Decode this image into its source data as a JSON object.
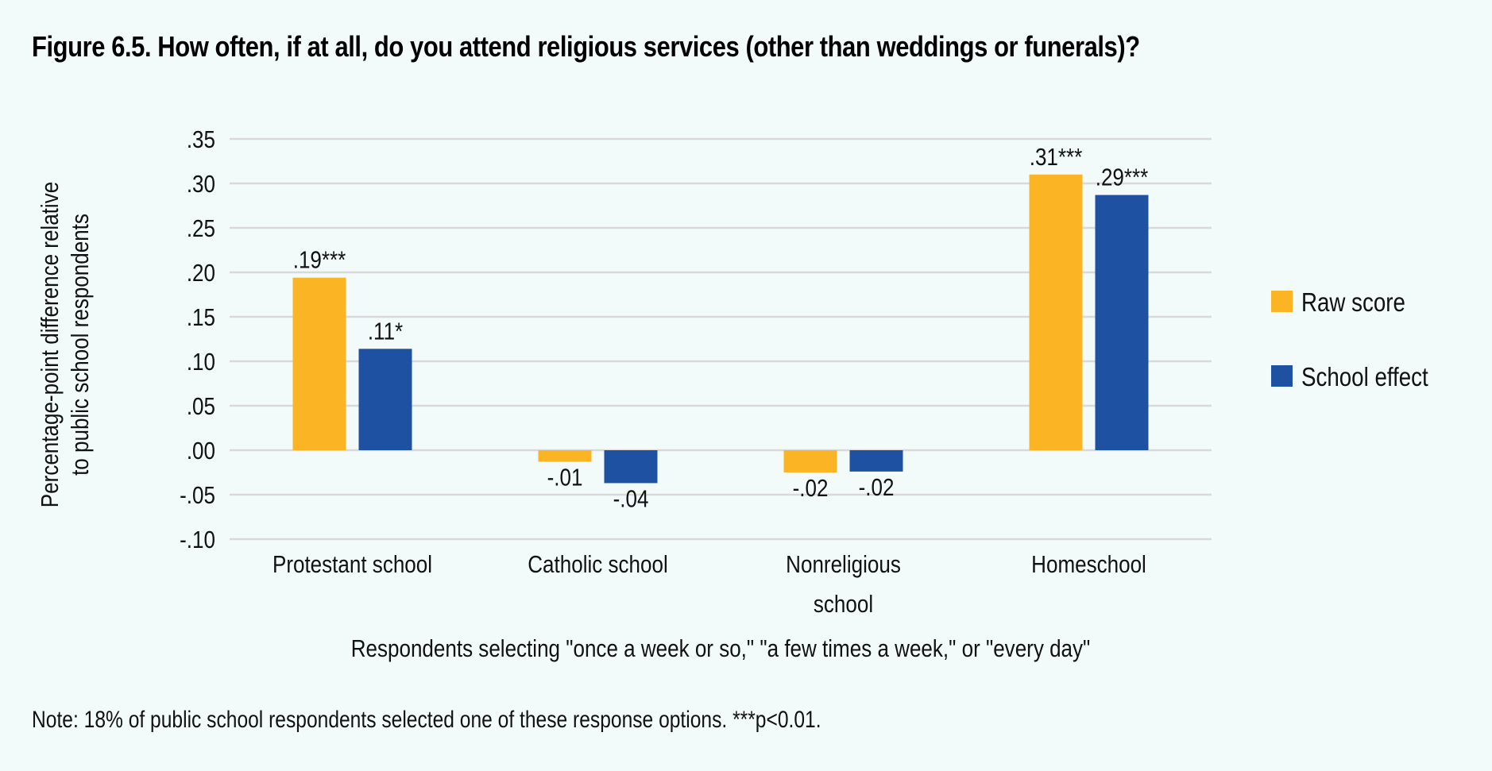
{
  "title": "Figure 6.5. How often, if at all, do you attend religious services (other than weddings or funerals)?",
  "note": "Note: 18% of public school respondents selected one of these response options. ***p<0.01.",
  "colors": {
    "background": "#F2FBFA",
    "raw_score": "#FBB424",
    "school_effect": "#1F51A2",
    "gridline": "#D9D9D9",
    "text": "#111111"
  },
  "chart_data": {
    "type": "bar",
    "title": "Figure 6.5. How often, if at all, do you attend religious services (other than weddings or funerals)?",
    "xlabel": "Respondents selecting \"once a week or so,\" \"a few times a week,\" or \"every day\"",
    "ylabel": [
      "Percentage-point difference relative",
      "to public school respondents"
    ],
    "categories": [
      [
        "Protestant school"
      ],
      [
        "Catholic school"
      ],
      [
        "Nonreligious",
        "school"
      ],
      [
        "Homeschool"
      ]
    ],
    "series": [
      {
        "name": "Raw score",
        "color": "#FBB424",
        "values": [
          0.194,
          -0.013,
          -0.025,
          0.31
        ],
        "labels": [
          ".19***",
          "-.01",
          "-.02",
          ".31***"
        ]
      },
      {
        "name": "School effect",
        "color": "#1F51A2",
        "values": [
          0.114,
          -0.037,
          -0.024,
          0.287
        ],
        "labels": [
          ".11*",
          "-.04",
          "-.02",
          ".29***"
        ]
      }
    ],
    "ylim": [
      -0.1,
      0.35
    ],
    "yticks": [
      0.35,
      0.3,
      0.25,
      0.2,
      0.15,
      0.1,
      0.05,
      0.0,
      -0.05,
      -0.1
    ],
    "ytick_labels": [
      ".35",
      ".30",
      ".25",
      ".20",
      ".15",
      ".10",
      ".05",
      ".00",
      "-.05",
      "-.10"
    ],
    "grid": true,
    "legend": {
      "placement": "right",
      "entries": [
        "Raw score",
        "School effect"
      ]
    }
  }
}
